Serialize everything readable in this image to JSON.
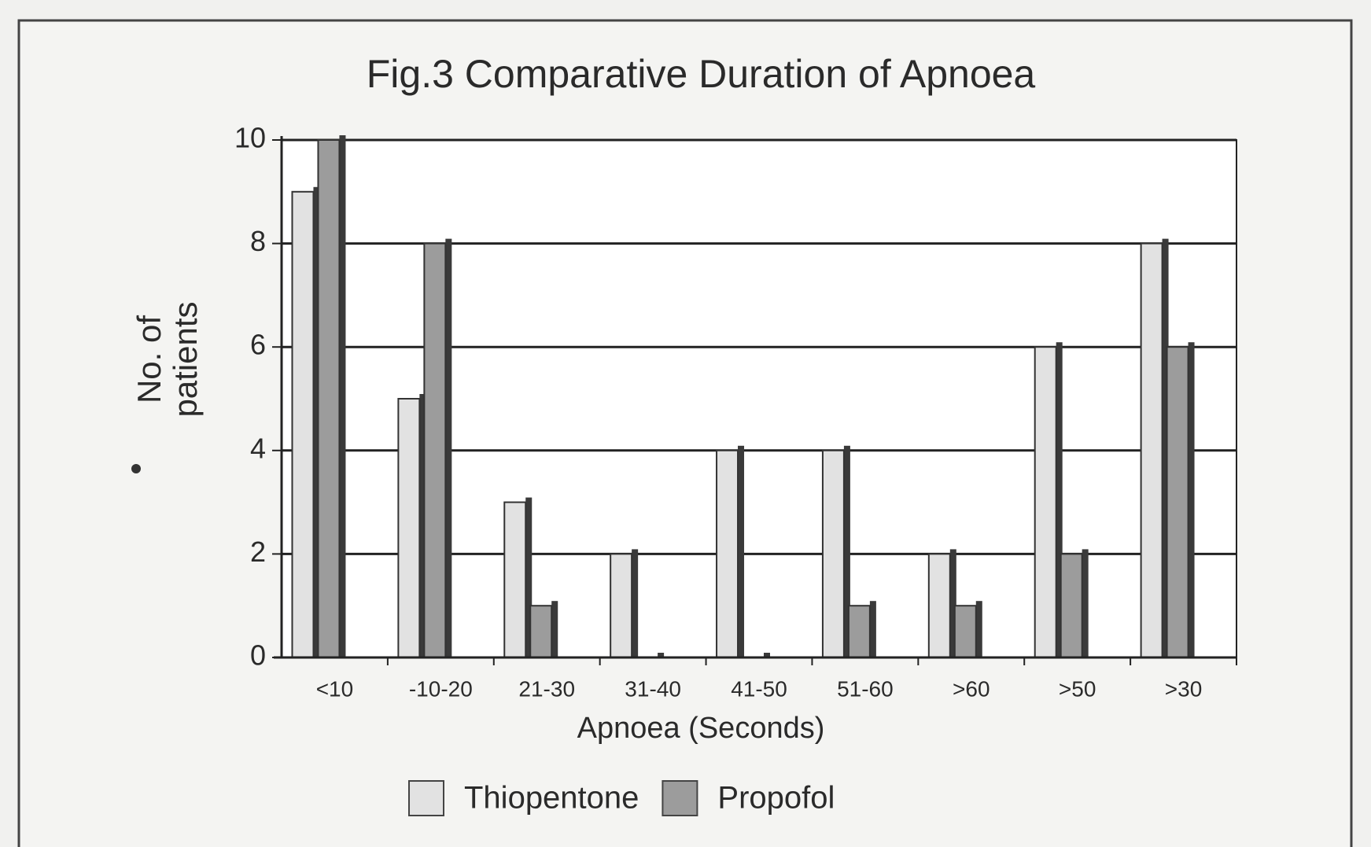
{
  "chart_data": {
    "type": "bar",
    "title": "Fig.3 Comparative Duration of Apnoea",
    "xlabel": "Apnoea (Seconds)",
    "ylabel": [
      "No. of",
      "patients"
    ],
    "categories": [
      "<10",
      "-10-20",
      "21-30",
      "31-40",
      "41-50",
      "51-60",
      ">60",
      ">50",
      ">30"
    ],
    "series": [
      {
        "name": "Thiopentone",
        "color": "#e2e2e2",
        "values": [
          9,
          5,
          3,
          2,
          4,
          4,
          2,
          6,
          8
        ]
      },
      {
        "name": "Propofol",
        "color": "#9c9c9c",
        "values": [
          10,
          8,
          1,
          0,
          0,
          1,
          1,
          2,
          6
        ]
      }
    ],
    "ylim": [
      0,
      10
    ],
    "yticks": [
      0,
      2,
      4,
      6,
      8,
      10
    ],
    "grid": true
  }
}
